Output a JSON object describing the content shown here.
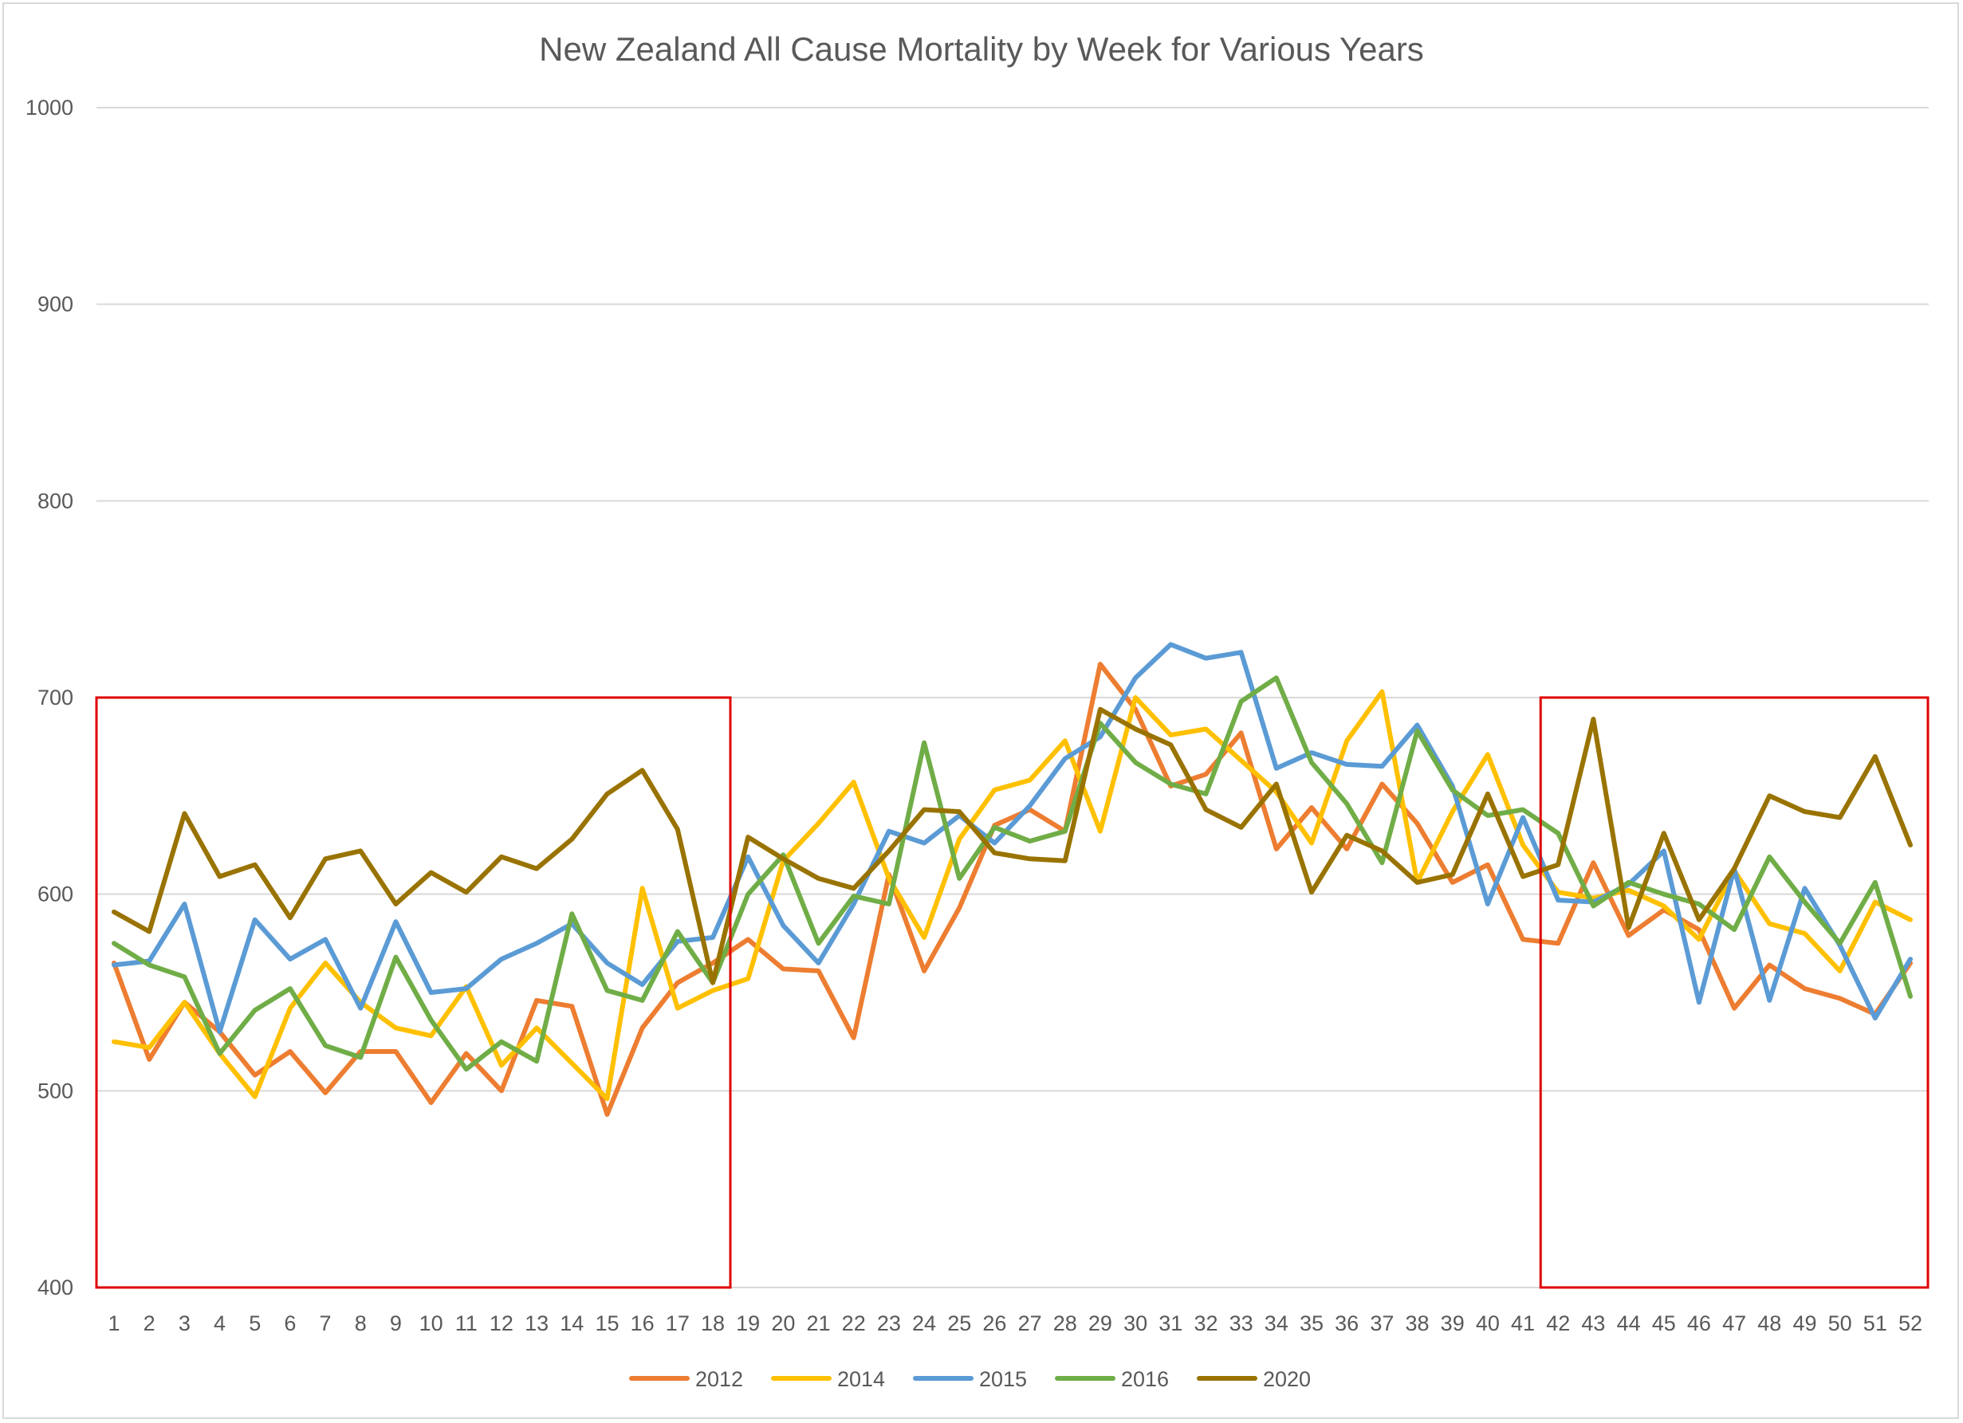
{
  "chart_data": {
    "type": "line",
    "title": "New Zealand All Cause Mortality by Week for Various Years",
    "xlabel": "",
    "ylabel": "",
    "ylim": [
      400,
      1000
    ],
    "yticks": [
      400,
      500,
      600,
      700,
      800,
      900,
      1000
    ],
    "grid": "horizontal",
    "legend_position": "bottom",
    "x": [
      1,
      2,
      3,
      4,
      5,
      6,
      7,
      8,
      9,
      10,
      11,
      12,
      13,
      14,
      15,
      16,
      17,
      18,
      19,
      20,
      21,
      22,
      23,
      24,
      25,
      26,
      27,
      28,
      29,
      30,
      31,
      32,
      33,
      34,
      35,
      36,
      37,
      38,
      39,
      40,
      41,
      42,
      43,
      44,
      45,
      46,
      47,
      48,
      49,
      50,
      51,
      52
    ],
    "series": [
      {
        "name": "2012",
        "color": "#ED7D31",
        "values": [
          565,
          516,
          545,
          530,
          508,
          520,
          499,
          520,
          520,
          494,
          519,
          500,
          546,
          543,
          488,
          532,
          555,
          565,
          577,
          562,
          561,
          527,
          610,
          561,
          593,
          635,
          643,
          632,
          717,
          694,
          655,
          661,
          682,
          623,
          644,
          623,
          656,
          636,
          606,
          615,
          577,
          575,
          616,
          579,
          592,
          582,
          542,
          564,
          552,
          547,
          539,
          565
        ]
      },
      {
        "name": "2014",
        "color": "#FFC000",
        "values": [
          525,
          522,
          545,
          519,
          497,
          542,
          565,
          545,
          532,
          528,
          553,
          513,
          532,
          514,
          496,
          603,
          542,
          551,
          557,
          617,
          636,
          657,
          608,
          578,
          628,
          653,
          658,
          678,
          632,
          700,
          681,
          684,
          668,
          652,
          626,
          678,
          703,
          606,
          642,
          671,
          625,
          601,
          598,
          602,
          594,
          577,
          612,
          585,
          580,
          561,
          596,
          587
        ]
      },
      {
        "name": "2015",
        "color": "#5B9BD5",
        "values": [
          564,
          566,
          595,
          530,
          587,
          567,
          577,
          542,
          586,
          550,
          552,
          567,
          575,
          585,
          565,
          554,
          576,
          578,
          619,
          584,
          565,
          595,
          632,
          626,
          640,
          626,
          645,
          669,
          680,
          710,
          727,
          720,
          723,
          664,
          672,
          666,
          665,
          686,
          655,
          595,
          639,
          597,
          596,
          605,
          622,
          545,
          613,
          546,
          603,
          574,
          537,
          567
        ]
      },
      {
        "name": "2016",
        "color": "#70AD47",
        "values": [
          575,
          564,
          558,
          519,
          541,
          552,
          523,
          517,
          568,
          536,
          511,
          525,
          515,
          590,
          551,
          546,
          581,
          555,
          600,
          620,
          575,
          599,
          595,
          677,
          608,
          634,
          627,
          632,
          687,
          667,
          656,
          651,
          698,
          710,
          667,
          646,
          616,
          683,
          653,
          640,
          643,
          631,
          594,
          606,
          600,
          595,
          582,
          619,
          596,
          575,
          606,
          548
        ]
      },
      {
        "name": "2020",
        "color": "#997300",
        "values": [
          591,
          581,
          641,
          609,
          615,
          588,
          618,
          622,
          595,
          611,
          601,
          619,
          613,
          628,
          651,
          663,
          633,
          555,
          629,
          618,
          608,
          603,
          622,
          643,
          642,
          621,
          618,
          617,
          694,
          684,
          676,
          643,
          634,
          656,
          601,
          630,
          622,
          606,
          610,
          651,
          609,
          615,
          689,
          583,
          631,
          587,
          613,
          650,
          642,
          639,
          670,
          625
        ]
      }
    ]
  },
  "highlight_boxes": [
    {
      "x_from": 1,
      "x_to": 18,
      "y_from": 400,
      "y_to": 700,
      "color": "#E00000"
    },
    {
      "x_from": 42,
      "x_to": 52,
      "y_from": 400,
      "y_to": 700,
      "color": "#E00000"
    }
  ]
}
